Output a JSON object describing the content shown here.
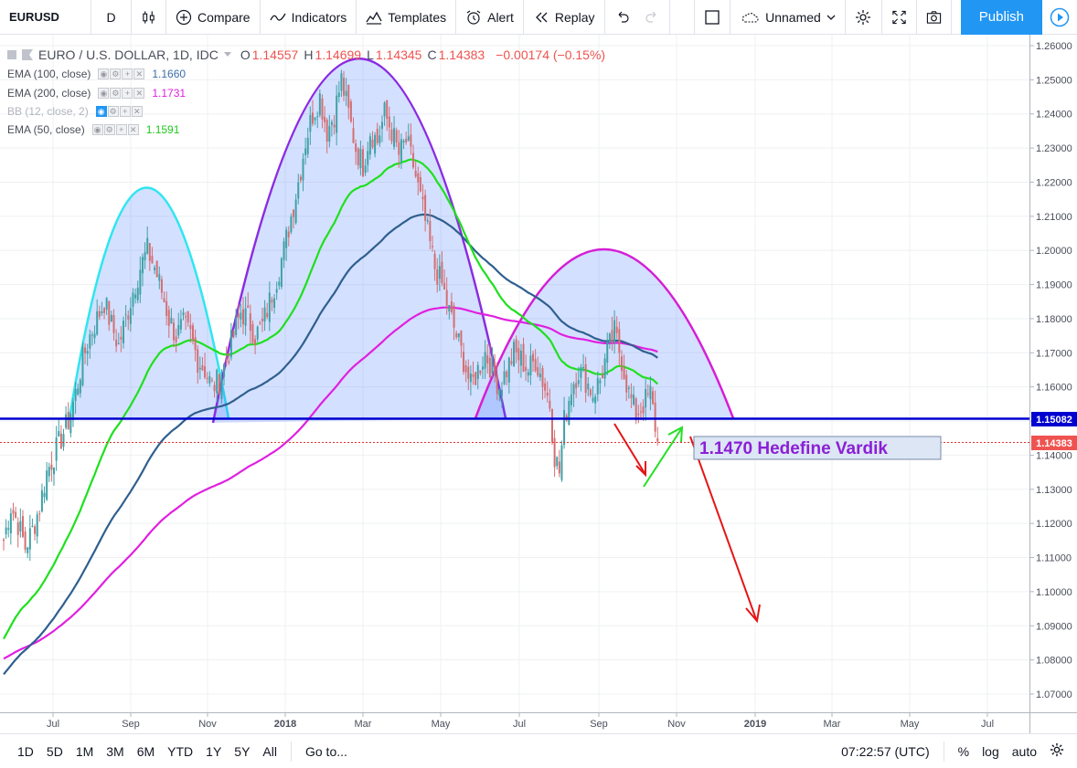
{
  "toolbar": {
    "symbol": "EURUSD",
    "interval": "D",
    "compare": "Compare",
    "indicators": "Indicators",
    "templates": "Templates",
    "alert": "Alert",
    "replay": "Replay",
    "layout_name": "Unnamed",
    "publish": "Publish"
  },
  "header": {
    "title": "EURO / U.S. DOLLAR, 1D, IDC",
    "o_label": "O",
    "o_value": "1.14557",
    "h_label": "H",
    "h_value": "1.14699",
    "l_label": "L",
    "l_value": "1.14345",
    "c_label": "C",
    "c_value": "1.14383",
    "change": "−0.00174 (−0.15%)"
  },
  "legends": [
    {
      "label": "EMA (100, close)",
      "value": "1.1660",
      "color": "#3a6ea5"
    },
    {
      "label": "EMA (200, close)",
      "value": "1.1731",
      "color": "#e020e0"
    },
    {
      "label": "BB (12, close, 2)",
      "value": "",
      "color": "#b2b5be"
    },
    {
      "label": "EMA (50, close)",
      "value": "1.1591",
      "color": "#1ec81e"
    }
  ],
  "annotation": {
    "text": "1.1470 Hedefine Vardik",
    "color": "#8b1fd6"
  },
  "price_badges": {
    "level": "1.15082",
    "last": "1.14383"
  },
  "bottom": {
    "ranges": [
      "1D",
      "5D",
      "1M",
      "3M",
      "6M",
      "YTD",
      "1Y",
      "5Y",
      "All"
    ],
    "goto": "Go to...",
    "time": "07:22:57 (UTC)",
    "percent": "%",
    "log": "log",
    "auto": "auto"
  },
  "chart_data": {
    "type": "candlestick",
    "y_ticks": [
      "1.26000",
      "1.25000",
      "1.24000",
      "1.23000",
      "1.22000",
      "1.21000",
      "1.20000",
      "1.19000",
      "1.18000",
      "1.17000",
      "1.16000",
      "1.15000",
      "1.14000",
      "1.13000",
      "1.12000",
      "1.11000",
      "1.10000",
      "1.09000",
      "1.08000",
      "1.07000"
    ],
    "x_ticks": [
      "Jul",
      "Sep",
      "Nov",
      "2018",
      "Mar",
      "May",
      "Jul",
      "Sep",
      "Nov",
      "2019",
      "Mar",
      "May",
      "Jul"
    ],
    "ylim": [
      1.065,
      1.2635
    ],
    "horizontal_level": 1.15082,
    "last_price": 1.14383,
    "price_path": [
      [
        0,
        1.115
      ],
      [
        3,
        1.125
      ],
      [
        6,
        1.12
      ],
      [
        9,
        1.113
      ],
      [
        12,
        1.118
      ],
      [
        15,
        1.125
      ],
      [
        18,
        1.135
      ],
      [
        21,
        1.14
      ],
      [
        24,
        1.145
      ],
      [
        27,
        1.15
      ],
      [
        30,
        1.158
      ],
      [
        33,
        1.168
      ],
      [
        36,
        1.175
      ],
      [
        39,
        1.18
      ],
      [
        42,
        1.185
      ],
      [
        45,
        1.178
      ],
      [
        48,
        1.172
      ],
      [
        51,
        1.18
      ],
      [
        54,
        1.188
      ],
      [
        57,
        1.195
      ],
      [
        60,
        1.2
      ],
      [
        63,
        1.195
      ],
      [
        66,
        1.188
      ],
      [
        69,
        1.18
      ],
      [
        72,
        1.175
      ],
      [
        75,
        1.178
      ],
      [
        78,
        1.175
      ],
      [
        81,
        1.168
      ],
      [
        84,
        1.165
      ],
      [
        87,
        1.16
      ],
      [
        90,
        1.162
      ],
      [
        93,
        1.168
      ],
      [
        96,
        1.175
      ],
      [
        99,
        1.182
      ],
      [
        102,
        1.18
      ],
      [
        105,
        1.175
      ],
      [
        108,
        1.178
      ],
      [
        111,
        1.185
      ],
      [
        114,
        1.192
      ],
      [
        117,
        1.2
      ],
      [
        120,
        1.21
      ],
      [
        123,
        1.22
      ],
      [
        126,
        1.232
      ],
      [
        129,
        1.24
      ],
      [
        132,
        1.245
      ],
      [
        135,
        1.235
      ],
      [
        138,
        1.24
      ],
      [
        141,
        1.25
      ],
      [
        144,
        1.24
      ],
      [
        147,
        1.23
      ],
      [
        150,
        1.225
      ],
      [
        153,
        1.235
      ],
      [
        156,
        1.232
      ],
      [
        159,
        1.24
      ],
      [
        162,
        1.235
      ],
      [
        165,
        1.228
      ],
      [
        168,
        1.232
      ],
      [
        171,
        1.225
      ],
      [
        174,
        1.215
      ],
      [
        177,
        1.205
      ],
      [
        180,
        1.195
      ],
      [
        183,
        1.19
      ],
      [
        186,
        1.182
      ],
      [
        189,
        1.175
      ],
      [
        192,
        1.168
      ],
      [
        195,
        1.16
      ],
      [
        198,
        1.165
      ],
      [
        201,
        1.17
      ],
      [
        204,
        1.165
      ],
      [
        207,
        1.16
      ],
      [
        210,
        1.165
      ],
      [
        213,
        1.17
      ],
      [
        216,
        1.168
      ],
      [
        219,
        1.165
      ],
      [
        222,
        1.168
      ],
      [
        225,
        1.162
      ],
      [
        228,
        1.155
      ],
      [
        230,
        1.14
      ],
      [
        232,
        1.135
      ],
      [
        234,
        1.15
      ],
      [
        237,
        1.16
      ],
      [
        240,
        1.165
      ],
      [
        243,
        1.162
      ],
      [
        246,
        1.158
      ],
      [
        249,
        1.162
      ],
      [
        252,
        1.17
      ],
      [
        255,
        1.176
      ],
      [
        258,
        1.168
      ],
      [
        261,
        1.158
      ],
      [
        264,
        1.152
      ],
      [
        267,
        1.155
      ],
      [
        270,
        1.158
      ],
      [
        273,
        1.144
      ]
    ]
  }
}
